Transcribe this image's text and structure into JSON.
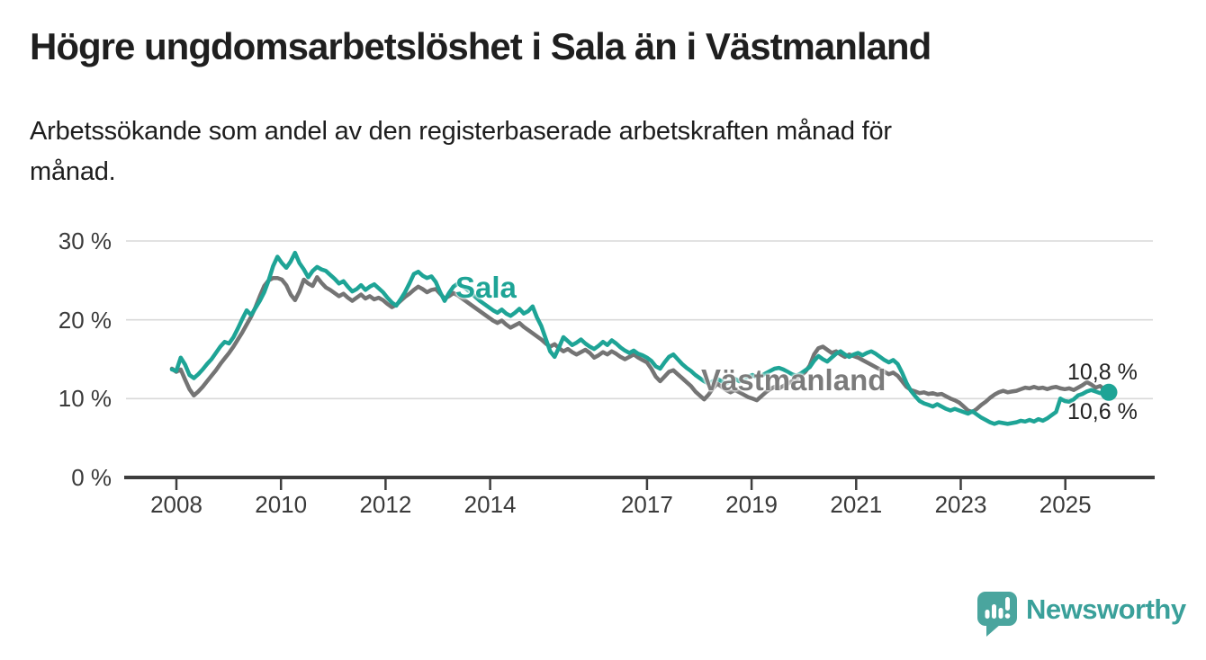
{
  "page": {
    "title": "Högre ungdomsarbetslöshet i Sala än i Västmanland",
    "subtitle_line1": "Arbetssökande som andel av den registerbaserade arbetskraften månad för",
    "subtitle_line2": "månad."
  },
  "branding": {
    "logo_text": "Newsworthy",
    "logo_icon": "bar-chart-speech-bubble-icon",
    "logo_icon_color": "#4aa59e",
    "logo_text_color": "#3aa09a"
  },
  "chart_data": {
    "type": "line",
    "y_unit": "%",
    "x_start": "2008-01",
    "x_end": "2025-10",
    "frequency": "monthly",
    "ylim": [
      0,
      32
    ],
    "grid": "horizontal",
    "y_ticks": [
      {
        "value": 30,
        "label": "30 %"
      },
      {
        "value": 20,
        "label": "20 %"
      },
      {
        "value": 10,
        "label": "10 %"
      },
      {
        "value": 0,
        "label": "0 %"
      }
    ],
    "x_ticks": [
      {
        "year": 2008,
        "label": "2008"
      },
      {
        "year": 2010,
        "label": "2010"
      },
      {
        "year": 2012,
        "label": "2012"
      },
      {
        "year": 2014,
        "label": "2014"
      },
      {
        "year": 2017,
        "label": "2017"
      },
      {
        "year": 2019,
        "label": "2019"
      },
      {
        "year": 2021,
        "label": "2021"
      },
      {
        "year": 2023,
        "label": "2023"
      },
      {
        "year": 2025,
        "label": "2025"
      }
    ],
    "series": [
      {
        "name": "Västmanland",
        "color": "#747474",
        "end_value_label": "10,6 %",
        "end_dot": false,
        "values": [
          13.8,
          13.4,
          13.7,
          12.4,
          11.2,
          10.4,
          10.9,
          11.5,
          12.2,
          12.9,
          13.6,
          14.4,
          15.1,
          15.8,
          16.6,
          17.5,
          18.4,
          19.4,
          20.4,
          21.6,
          23.0,
          24.3,
          25.0,
          25.3,
          25.3,
          25.1,
          24.4,
          23.2,
          22.5,
          23.6,
          25.1,
          24.6,
          24.3,
          25.4,
          24.7,
          24.1,
          23.8,
          23.4,
          23.0,
          23.3,
          22.8,
          22.4,
          22.8,
          23.2,
          22.7,
          23.0,
          22.6,
          22.8,
          22.5,
          22.0,
          21.6,
          21.9,
          22.4,
          22.9,
          23.3,
          23.8,
          24.2,
          23.9,
          23.5,
          23.8,
          23.9,
          23.3,
          22.7,
          23.0,
          23.4,
          23.1,
          22.7,
          22.3,
          21.9,
          21.5,
          21.1,
          20.7,
          20.3,
          19.9,
          19.6,
          19.9,
          19.4,
          19.0,
          19.3,
          19.6,
          19.1,
          18.7,
          18.3,
          17.9,
          17.5,
          17.0,
          16.6,
          16.9,
          16.4,
          16.0,
          16.3,
          15.9,
          15.6,
          15.9,
          16.2,
          15.8,
          15.2,
          15.5,
          15.9,
          15.6,
          16.0,
          15.7,
          15.3,
          15.0,
          15.3,
          15.6,
          15.2,
          14.9,
          14.6,
          13.8,
          12.8,
          12.2,
          12.8,
          13.4,
          13.6,
          13.1,
          12.6,
          12.1,
          11.6,
          10.9,
          10.4,
          9.9,
          10.5,
          11.3,
          11.9,
          11.5,
          11.1,
          10.8,
          11.1,
          10.8,
          10.5,
          10.2,
          10.0,
          9.8,
          10.3,
          10.8,
          11.2,
          11.5,
          11.3,
          11.6,
          11.9,
          12.2,
          12.5,
          12.9,
          13.4,
          14.2,
          15.6,
          16.4,
          16.6,
          16.2,
          15.8,
          16.0,
          15.6,
          15.3,
          15.6,
          15.4,
          15.2,
          14.9,
          14.6,
          14.3,
          14.0,
          13.7,
          13.4,
          13.1,
          13.3,
          12.9,
          12.2,
          11.5,
          11.1,
          10.9,
          10.7,
          10.8,
          10.6,
          10.7,
          10.5,
          10.6,
          10.3,
          10.0,
          9.8,
          9.5,
          9.0,
          8.5,
          8.3,
          8.7,
          9.2,
          9.6,
          10.1,
          10.5,
          10.8,
          11.0,
          10.8,
          10.9,
          11.0,
          11.2,
          11.4,
          11.3,
          11.5,
          11.3,
          11.4,
          11.2,
          11.4,
          11.5,
          11.3,
          11.2,
          11.3,
          11.1,
          11.4,
          11.7,
          12.1,
          11.8,
          11.4,
          11.6,
          11.2,
          10.6
        ]
      },
      {
        "name": "Sala",
        "color": "#1ea496",
        "end_value_label": "10,8 %",
        "end_dot": true,
        "values": [
          13.7,
          13.5,
          15.2,
          14.3,
          13.0,
          12.6,
          13.1,
          13.7,
          14.4,
          15.0,
          15.8,
          16.6,
          17.2,
          17.0,
          17.8,
          18.9,
          20.1,
          21.2,
          20.6,
          21.5,
          22.4,
          23.5,
          25.0,
          26.8,
          28.0,
          27.2,
          26.6,
          27.4,
          28.5,
          27.2,
          26.4,
          25.4,
          26.2,
          26.7,
          26.4,
          26.2,
          25.7,
          25.2,
          24.6,
          24.9,
          24.2,
          23.6,
          23.9,
          24.4,
          23.8,
          24.2,
          24.5,
          24.0,
          23.5,
          22.8,
          22.2,
          21.8,
          22.6,
          23.5,
          24.6,
          25.8,
          26.1,
          25.6,
          25.3,
          25.5,
          24.8,
          23.5,
          22.4,
          23.4,
          24.2,
          24.6,
          24.3,
          23.9,
          23.4,
          22.9,
          22.4,
          22.0,
          21.6,
          21.2,
          20.9,
          21.3,
          20.8,
          20.5,
          20.9,
          21.4,
          20.8,
          21.1,
          21.7,
          20.3,
          19.2,
          17.6,
          16.0,
          15.3,
          16.5,
          17.8,
          17.3,
          16.8,
          17.1,
          17.5,
          17.0,
          16.6,
          16.3,
          16.7,
          17.2,
          16.8,
          17.4,
          17.0,
          16.5,
          16.1,
          15.8,
          16.1,
          15.7,
          15.5,
          15.2,
          14.8,
          14.1,
          13.8,
          14.6,
          15.3,
          15.6,
          15.0,
          14.4,
          13.9,
          13.5,
          13.0,
          12.6,
          12.2,
          11.9,
          12.2,
          12.5,
          12.2,
          11.9,
          12.2,
          12.5,
          12.2,
          12.5,
          12.8,
          13.0,
          12.7,
          12.9,
          13.2,
          13.5,
          13.8,
          13.9,
          13.7,
          13.4,
          13.1,
          12.9,
          13.2,
          13.6,
          14.0,
          14.8,
          15.4,
          15.0,
          14.7,
          15.2,
          15.7,
          16.0,
          15.6,
          15.3,
          15.6,
          15.8,
          15.5,
          15.8,
          16.0,
          15.7,
          15.3,
          14.9,
          14.6,
          14.9,
          14.4,
          13.3,
          12.0,
          11.0,
          10.3,
          9.7,
          9.4,
          9.2,
          9.0,
          9.3,
          9.0,
          8.7,
          8.5,
          8.7,
          8.5,
          8.3,
          8.1,
          8.4,
          8.0,
          7.6,
          7.3,
          7.0,
          6.8,
          7.0,
          6.9,
          6.8,
          6.9,
          7.0,
          7.2,
          7.1,
          7.3,
          7.1,
          7.4,
          7.2,
          7.5,
          7.9,
          8.3,
          10.0,
          9.7,
          9.6,
          9.9,
          10.4,
          10.6,
          10.9,
          11.1,
          10.9,
          10.7,
          10.9,
          10.8
        ]
      }
    ]
  }
}
